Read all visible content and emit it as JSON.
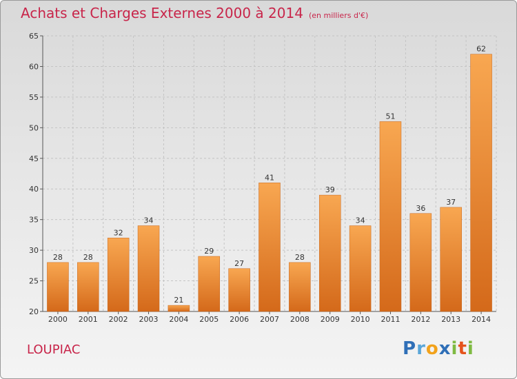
{
  "title": "Achats et Charges Externes 2000 à 2014",
  "unit": "(en milliers d'€)",
  "commune": "LOUPIAC",
  "logo": "Proxiti",
  "colors": {
    "bar_light": "#f6a14d",
    "bar_dark": "#d8701c",
    "title": "#c8254a"
  },
  "chart_data": {
    "type": "bar",
    "title": "Achats et Charges Externes 2000 à 2014",
    "subtitle": "(en milliers d'€)",
    "categories": [
      "2000",
      "2001",
      "2002",
      "2003",
      "2004",
      "2005",
      "2006",
      "2007",
      "2008",
      "2009",
      "2010",
      "2011",
      "2012",
      "2013",
      "2014"
    ],
    "values": [
      28,
      28,
      32,
      34,
      21,
      29,
      27,
      41,
      28,
      39,
      34,
      51,
      36,
      37,
      62
    ],
    "ylim": [
      20,
      65
    ],
    "yticks": [
      20,
      25,
      30,
      35,
      40,
      45,
      50,
      55,
      60,
      65
    ],
    "grid": true,
    "xlabel": "",
    "ylabel": ""
  }
}
